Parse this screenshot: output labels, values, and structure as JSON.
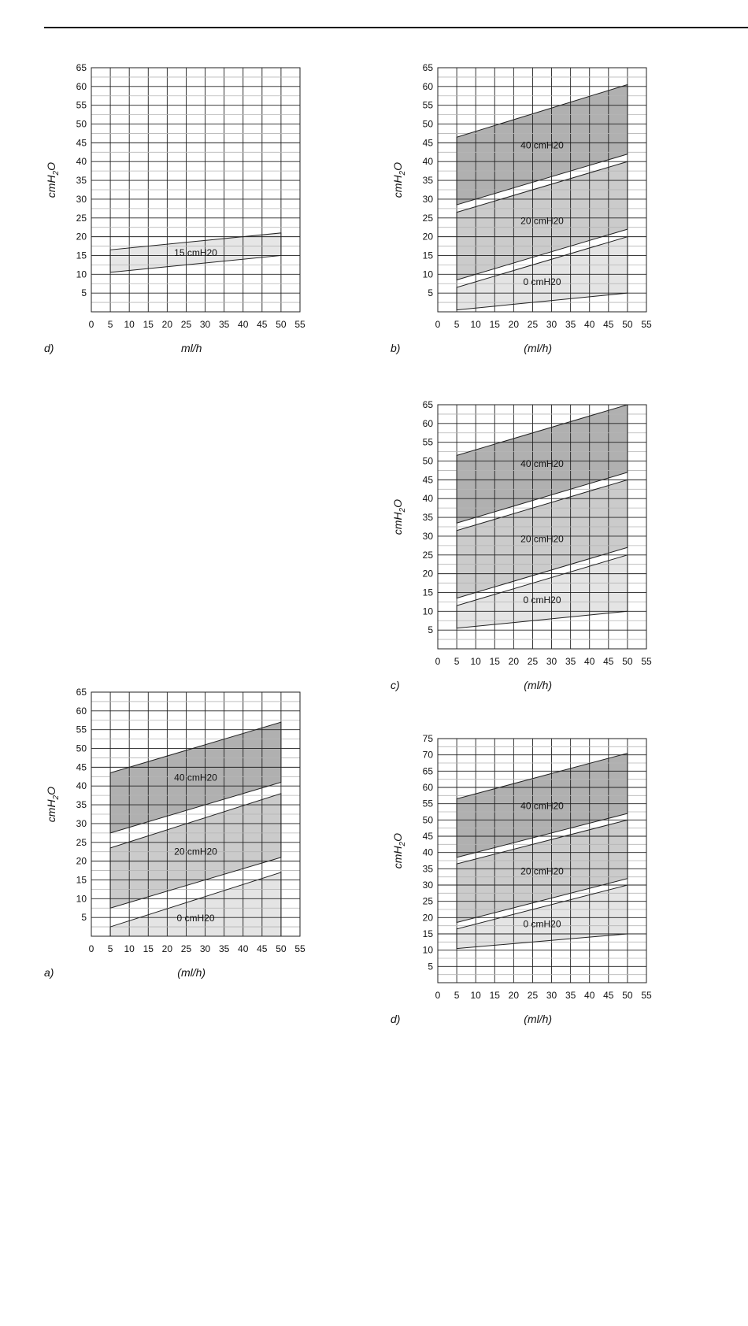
{
  "colors": {
    "band_40": "#b0b0b0",
    "band_20": "#cbcbcb",
    "band_0": "#e4e4e4",
    "band_15": "#e6e6e6",
    "grid": "#222222"
  },
  "chart_data": [
    {
      "id": "top-left",
      "type": "area",
      "panel_tag": "d)",
      "xlabel": "ml/h",
      "ylabel": "cmH2O",
      "xlim": [
        0,
        55
      ],
      "ylim": [
        0,
        65
      ],
      "x_ticks": [
        0,
        5,
        10,
        15,
        20,
        25,
        30,
        35,
        40,
        45,
        50,
        55
      ],
      "y_ticks": [
        5,
        10,
        15,
        20,
        25,
        30,
        35,
        40,
        45,
        50,
        55,
        60,
        65
      ],
      "grid": true,
      "series": [
        {
          "name": "15 cmH20",
          "x": [
            5,
            50
          ],
          "lower": [
            10.5,
            15
          ],
          "upper": [
            16.5,
            21
          ],
          "color_key": "band_15"
        }
      ]
    },
    {
      "id": "top-right",
      "type": "area",
      "panel_tag": "b)",
      "xlabel": "(ml/h)",
      "ylabel": "cmH2O",
      "xlim": [
        0,
        55
      ],
      "ylim": [
        0,
        65
      ],
      "x_ticks": [
        0,
        5,
        10,
        15,
        20,
        25,
        30,
        35,
        40,
        45,
        50,
        55
      ],
      "y_ticks": [
        5,
        10,
        15,
        20,
        25,
        30,
        35,
        40,
        45,
        50,
        55,
        60,
        65
      ],
      "grid": true,
      "series": [
        {
          "name": "40 cmH20",
          "x": [
            5,
            50
          ],
          "lower": [
            28.5,
            42
          ],
          "upper": [
            46.5,
            60.5
          ],
          "color_key": "band_40"
        },
        {
          "name": "20 cmH20",
          "x": [
            5,
            50
          ],
          "lower": [
            8.5,
            22
          ],
          "upper": [
            26.5,
            40
          ],
          "color_key": "band_20"
        },
        {
          "name": "0 cmH20",
          "x": [
            5,
            50
          ],
          "lower": [
            0.5,
            5
          ],
          "upper": [
            6.5,
            20
          ],
          "color_key": "band_0"
        }
      ]
    },
    {
      "id": "middle-right",
      "type": "area",
      "panel_tag": "c)",
      "xlabel": "(ml/h)",
      "ylabel": "cmH2O",
      "xlim": [
        0,
        55
      ],
      "ylim": [
        0,
        65
      ],
      "x_ticks": [
        0,
        5,
        10,
        15,
        20,
        25,
        30,
        35,
        40,
        45,
        50,
        55
      ],
      "y_ticks": [
        5,
        10,
        15,
        20,
        25,
        30,
        35,
        40,
        45,
        50,
        55,
        60,
        65
      ],
      "grid": true,
      "series": [
        {
          "name": "40 cmH20",
          "x": [
            5,
            50
          ],
          "lower": [
            33.5,
            47
          ],
          "upper": [
            51.5,
            65
          ],
          "color_key": "band_40"
        },
        {
          "name": "20 cmH20",
          "x": [
            5,
            50
          ],
          "lower": [
            13.5,
            27
          ],
          "upper": [
            31.5,
            45
          ],
          "color_key": "band_20"
        },
        {
          "name": "0 cmH20",
          "x": [
            5,
            50
          ],
          "lower": [
            5.5,
            10
          ],
          "upper": [
            11.5,
            25
          ],
          "color_key": "band_0"
        }
      ]
    },
    {
      "id": "bottom-left",
      "type": "area",
      "panel_tag": "a)",
      "xlabel": "(ml/h)",
      "ylabel": "cmH2O",
      "xlim": [
        0,
        55
      ],
      "ylim": [
        0,
        65
      ],
      "x_ticks": [
        0,
        5,
        10,
        15,
        20,
        25,
        30,
        35,
        40,
        45,
        50,
        55
      ],
      "y_ticks": [
        5,
        10,
        15,
        20,
        25,
        30,
        35,
        40,
        45,
        50,
        55,
        60,
        65
      ],
      "grid": true,
      "series": [
        {
          "name": "40 cmH20",
          "x": [
            5,
            50
          ],
          "lower": [
            27.5,
            41
          ],
          "upper": [
            43.5,
            57
          ],
          "color_key": "band_40"
        },
        {
          "name": "20 cmH20",
          "x": [
            5,
            50
          ],
          "lower": [
            7.5,
            21
          ],
          "upper": [
            23.5,
            38
          ],
          "color_key": "band_20"
        },
        {
          "name": "0 cmH20",
          "x": [
            5,
            50
          ],
          "lower": [
            0,
            0
          ],
          "upper": [
            2.5,
            17
          ],
          "color_key": "band_0"
        }
      ]
    },
    {
      "id": "bottom-right",
      "type": "area",
      "panel_tag": "d)",
      "xlabel": "(ml/h)",
      "ylabel": "cmH2O",
      "xlim": [
        0,
        55
      ],
      "ylim": [
        0,
        75
      ],
      "x_ticks": [
        0,
        5,
        10,
        15,
        20,
        25,
        30,
        35,
        40,
        45,
        50,
        55
      ],
      "y_ticks": [
        5,
        10,
        15,
        20,
        25,
        30,
        35,
        40,
        45,
        50,
        55,
        60,
        65,
        70,
        75
      ],
      "grid": true,
      "series": [
        {
          "name": "40 cmH20",
          "x": [
            5,
            50
          ],
          "lower": [
            38.5,
            52
          ],
          "upper": [
            56.5,
            70.5
          ],
          "color_key": "band_40"
        },
        {
          "name": "20 cmH20",
          "x": [
            5,
            50
          ],
          "lower": [
            18.5,
            32
          ],
          "upper": [
            36.5,
            50
          ],
          "color_key": "band_20"
        },
        {
          "name": "0 cmH20",
          "x": [
            5,
            50
          ],
          "lower": [
            10.5,
            15
          ],
          "upper": [
            16.5,
            30
          ],
          "color_key": "band_0"
        }
      ]
    }
  ]
}
